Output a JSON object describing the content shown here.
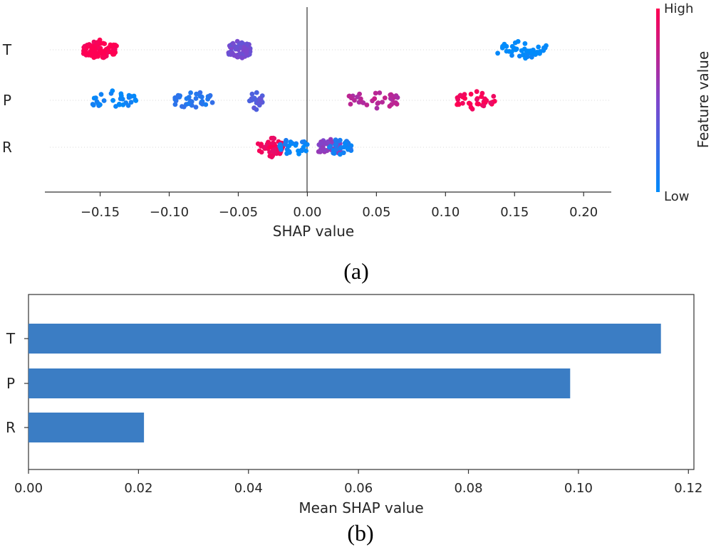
{
  "chart_data": [
    {
      "type": "scatter",
      "subtype": "shap-beeswarm",
      "panel_label": "(a)",
      "xlabel": "SHAP value",
      "x_ticks": [
        "−0.15",
        "−0.10",
        "−0.05",
        "0.00",
        "0.05",
        "0.10",
        "0.15",
        "0.20"
      ],
      "xlim": [
        -0.19,
        0.22
      ],
      "features": [
        "T",
        "P",
        "R"
      ],
      "colorbar": {
        "title": "Feature value",
        "high_label": "High",
        "low_label": "Low",
        "high_color": "#ff0052",
        "low_color": "#008bfb"
      },
      "clusters": [
        {
          "feature": "T",
          "center": -0.15,
          "spread": 0.012,
          "level": 1.0,
          "count": 90
        },
        {
          "feature": "T",
          "center": -0.049,
          "spread": 0.008,
          "level": 0.45,
          "count": 70
        },
        {
          "feature": "T",
          "center": 0.155,
          "spread": 0.018,
          "level": 0.0,
          "count": 45
        },
        {
          "feature": "P",
          "center": -0.14,
          "spread": 0.016,
          "level": 0.05,
          "count": 30
        },
        {
          "feature": "P",
          "center": -0.082,
          "spread": 0.014,
          "level": 0.15,
          "count": 35
        },
        {
          "feature": "P",
          "center": -0.037,
          "spread": 0.005,
          "level": 0.35,
          "count": 22
        },
        {
          "feature": "P",
          "center": 0.048,
          "spread": 0.018,
          "level": 0.72,
          "count": 35
        },
        {
          "feature": "P",
          "center": 0.122,
          "spread": 0.014,
          "level": 0.97,
          "count": 40
        },
        {
          "feature": "R",
          "center": -0.026,
          "spread": 0.01,
          "level": 0.95,
          "count": 55
        },
        {
          "feature": "R",
          "center": -0.01,
          "spread": 0.01,
          "level": 0.05,
          "count": 30
        },
        {
          "feature": "R",
          "center": 0.016,
          "spread": 0.008,
          "level": 0.55,
          "count": 40
        },
        {
          "feature": "R",
          "center": 0.024,
          "spread": 0.008,
          "level": 0.08,
          "count": 30
        }
      ]
    },
    {
      "type": "bar",
      "orientation": "horizontal",
      "panel_label": "(b)",
      "categories": [
        "T",
        "P",
        "R"
      ],
      "values": [
        0.115,
        0.0985,
        0.021
      ],
      "xlabel": "Mean SHAP value",
      "x_ticks": [
        "0.00",
        "0.02",
        "0.04",
        "0.06",
        "0.08",
        "0.10",
        "0.12"
      ],
      "xlim": [
        0,
        0.121
      ],
      "bar_color": "#3b7dc4"
    }
  ]
}
